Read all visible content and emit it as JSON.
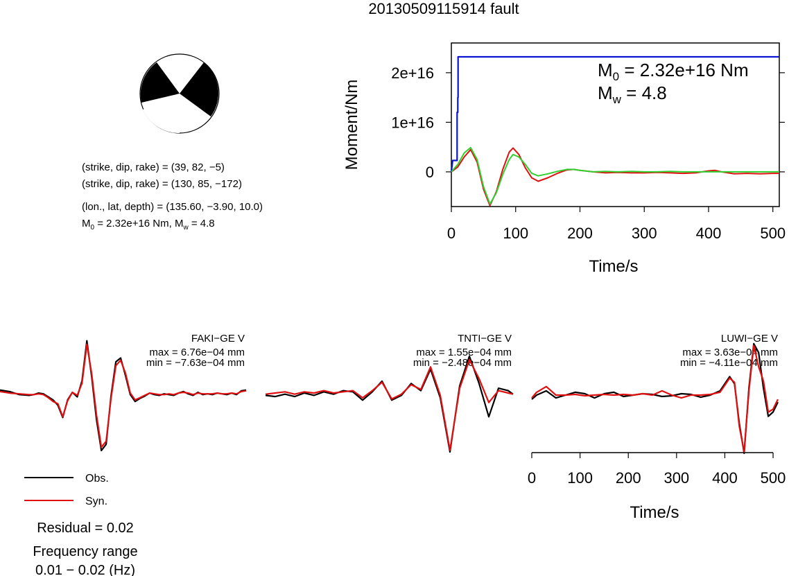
{
  "title": "20130509115914 fault",
  "solution": {
    "plane1": "(strike, dip, rake) = (39, 82, −5)",
    "plane2": "(strike, dip, rake) = (130, 85, −172)",
    "location": "(lon., lat, depth) = (135.60, −3.90, 10.0)",
    "moment_prefix": "M",
    "moment_sub": "0",
    "moment_value": " = 2.32e+16 Nm, M",
    "mw_sub": "w",
    "mw_value": " = 4.8"
  },
  "legend": {
    "obs_label": "Obs.",
    "syn_label": "Syn.",
    "obs_color": "#000000",
    "syn_color": "#e01010",
    "residual": "Residual = 0.02",
    "freq_label": "Frequency range",
    "freq_range": "0.01 − 0.02 (Hz)"
  },
  "colors": {
    "moment": "#0a14d0",
    "stf_red": "#e01010",
    "stf_green": "#30d030",
    "beachball": "#000000"
  },
  "chart_data": [
    {
      "type": "line",
      "xlabel": "Time/s",
      "ylabel": "Moment/Nm",
      "xlim": [
        0,
        510
      ],
      "ylim": [
        -7000000000000000.0,
        2.6e+16
      ],
      "xticks": [
        0,
        100,
        200,
        300,
        400,
        500
      ],
      "xtick_labels": [
        "0",
        "100",
        "200",
        "300",
        "400",
        "500"
      ],
      "yticks": [
        0,
        1e+16,
        2e+16
      ],
      "ytick_labels": [
        "0",
        "1e+16",
        "2e+16"
      ],
      "annotation_m0_prefix": "M",
      "annotation_m0_sub": "0",
      "annotation_m0_value": " = 2.32e+16 Nm",
      "annotation_mw_prefix": "M",
      "annotation_mw_sub": "w",
      "annotation_mw_value": " = 4.8",
      "series": [
        {
          "color": "#0a14d0",
          "x": [
            0,
            2,
            4,
            6,
            6,
            9,
            9,
            10,
            10,
            10.5,
            10.5,
            12,
            500,
            510
          ],
          "y": [
            0,
            2300000000000000.0,
            2300000000000000.0,
            2300000000000000.0,
            2300000000000000.0,
            2300000000000000.0,
            1.2e+16,
            1.2e+16,
            1.5e+16,
            1.5e+16,
            2.32e+16,
            2.32e+16,
            2.32e+16,
            2.32e+16
          ]
        },
        {
          "color": "#e01010",
          "x": [
            0,
            10,
            20,
            30,
            40,
            50,
            60,
            70,
            80,
            90,
            96,
            105,
            115,
            125,
            135,
            150,
            165,
            180,
            190,
            200,
            220,
            240,
            260,
            280,
            300,
            320,
            340,
            360,
            380,
            400,
            410,
            420,
            440,
            460,
            480,
            500,
            510
          ],
          "y": [
            0,
            1000000000000000.0,
            3000000000000000.0,
            4500000000000000.0,
            2000000000000000.0,
            -3500000000000000.0,
            -6800000000000000.0,
            -4000000000000000.0,
            500000000000000.0,
            4000000000000000.0,
            4800000000000000.0,
            3500000000000000.0,
            800000000000000.0,
            -1200000000000000.0,
            -1900000000000000.0,
            -1200000000000000.0,
            -300000000000000.0,
            400000000000000.0,
            500000000000000.0,
            300000000000000.0,
            0.0,
            -200000000000000.0,
            -100000000000000.0,
            -200000000000000.0,
            -200000000000000.0,
            -100000000000000.0,
            -200000000000000.0,
            -300000000000000.0,
            -200000000000000.0,
            200000000000000.0,
            300000000000000.0,
            0.0,
            -400000000000000.0,
            -300000000000000.0,
            -400000000000000.0,
            -300000000000000.0,
            -300000000000000.0
          ]
        },
        {
          "color": "#30d030",
          "x": [
            0,
            10,
            20,
            30,
            40,
            50,
            60,
            70,
            80,
            90,
            96,
            105,
            115,
            125,
            135,
            150,
            165,
            180,
            190,
            200,
            220,
            240,
            260,
            280,
            300,
            320,
            340,
            360,
            380,
            400,
            420,
            440,
            460,
            480,
            500,
            510
          ],
          "y": [
            0,
            1500000000000000.0,
            3800000000000000.0,
            4900000000000000.0,
            2500000000000000.0,
            -3000000000000000.0,
            -6500000000000000.0,
            -4200000000000000.0,
            -500000000000000.0,
            2500000000000000.0,
            3500000000000000.0,
            3000000000000000.0,
            1500000000000000.0,
            -300000000000000.0,
            -800000000000000.0,
            -400000000000000.0,
            100000000000000.0,
            500000000000000.0,
            500000000000000.0,
            300000000000000.0,
            0.0,
            100000000000000.0,
            0.0,
            100000000000000.0,
            0.0,
            0.0,
            100000000000000.0,
            0.0,
            0.0,
            0.0,
            0.0,
            0.0,
            0.0,
            0.0,
            0.0,
            0.0
          ]
        }
      ]
    },
    {
      "type": "line",
      "station": "FAKI−GE V",
      "max_label": "max = 6.76e−04 mm",
      "min_label": "min = −7.63e−04 mm",
      "xlim": [
        0,
        510
      ],
      "ylim": [
        -0.000763,
        0.000676
      ],
      "series": [
        {
          "name": "Obs.",
          "color": "#000000",
          "x": [
            0,
            20,
            40,
            60,
            70,
            80,
            90,
            100,
            110,
            120,
            130,
            140,
            150,
            160,
            170,
            180,
            190,
            200,
            210,
            220,
            230,
            240,
            250,
            260,
            270,
            280,
            290,
            300,
            310,
            320,
            330,
            340,
            350,
            360,
            370,
            380,
            390,
            400,
            410,
            420,
            430,
            440,
            450,
            460,
            470,
            480,
            490,
            500,
            510
          ],
          "y": [
            3e-05,
            1e-05,
            -3e-05,
            -4e-05,
            -3e-05,
            -1e-05,
            -2e-05,
            -6e-05,
            -0.0001,
            -0.00017,
            -0.00033,
            -0.0001,
            0.0,
            -6e-05,
            0.00015,
            0.000676,
            0.0002,
            -0.00036,
            -0.000763,
            -0.00068,
            -5e-05,
            0.0004,
            0.00045,
            0.00022,
            -3e-05,
            -0.00012,
            -8e-05,
            -5e-05,
            -1e-05,
            -3e-05,
            -4e-05,
            -2e-05,
            -3e-05,
            -4e-05,
            -1e-05,
            1e-05,
            -2e-05,
            -4e-05,
            0.0,
            -3e-05,
            -2e-05,
            -3e-05,
            -1e-05,
            -2e-05,
            -3e-05,
            -1e-05,
            -3e-05,
            2e-05,
            3e-05
          ]
        },
        {
          "name": "Syn.",
          "color": "#e01010",
          "x": [
            0,
            20,
            40,
            60,
            70,
            80,
            90,
            100,
            110,
            120,
            130,
            140,
            150,
            160,
            170,
            180,
            190,
            200,
            210,
            220,
            230,
            240,
            250,
            260,
            270,
            280,
            290,
            300,
            310,
            320,
            330,
            340,
            350,
            360,
            370,
            380,
            390,
            400,
            410,
            420,
            430,
            440,
            450,
            460,
            470,
            480,
            490,
            500,
            510
          ],
          "y": [
            1e-05,
            -1e-05,
            -2e-05,
            -3e-05,
            -3e-05,
            -2e-05,
            -3e-05,
            -7e-05,
            -0.00012,
            -0.00015,
            -0.00032,
            -0.00011,
            0.0,
            -4e-05,
            0.00012,
            0.00063,
            0.00024,
            -0.0003,
            -0.00072,
            -0.00064,
            -8e-05,
            0.00035,
            0.00042,
            0.00025,
            -1e-05,
            -0.0001,
            -7e-05,
            -4e-05,
            -1e-05,
            -2e-05,
            -3e-05,
            -3e-05,
            -2e-05,
            -3e-05,
            -1e-05,
            0.0,
            -1e-05,
            -3e-05,
            -1e-05,
            -2e-05,
            -2e-05,
            -2e-05,
            -1e-05,
            -2e-05,
            -2e-05,
            -1e-05,
            -2e-05,
            1e-05,
            2e-05
          ]
        }
      ]
    },
    {
      "type": "line",
      "station": "TNTI−GE V",
      "max_label": "max = 1.55e−04 mm",
      "min_label": "min = −2.48e−04 mm",
      "xlim": [
        0,
        510
      ],
      "ylim": [
        -0.000248,
        0.000155
      ],
      "series": [
        {
          "name": "Obs.",
          "color": "#000000",
          "x": [
            0,
            20,
            40,
            60,
            80,
            100,
            120,
            140,
            160,
            180,
            200,
            220,
            240,
            260,
            280,
            300,
            320,
            340,
            360,
            380,
            400,
            420,
            440,
            460,
            480,
            500,
            510
          ],
          "y": [
            -1e-05,
            -1.5e-05,
            -5e-06,
            -1.5e-05,
            0.0,
            -1e-05,
            5e-06,
            -5e-06,
            1e-05,
            5e-06,
            -3e-05,
            5e-06,
            5e-05,
            -3e-05,
            -1e-05,
            4e-05,
            1e-05,
            0.0001,
            -2e-05,
            -0.000248,
            3e-05,
            0.000155,
            4e-05,
            -0.0001,
            2e-05,
            1e-05,
            -5e-06
          ]
        },
        {
          "name": "Syn.",
          "color": "#e01010",
          "x": [
            0,
            20,
            40,
            60,
            80,
            100,
            120,
            140,
            160,
            180,
            200,
            220,
            240,
            260,
            280,
            300,
            320,
            340,
            360,
            380,
            400,
            420,
            440,
            460,
            480,
            500,
            510
          ],
          "y": [
            -5e-06,
            0.0,
            5e-06,
            -5e-06,
            5e-06,
            0.0,
            1e-05,
            0.0,
            5e-06,
            1e-05,
            -2e-05,
            1e-05,
            4.5e-05,
            -2.5e-05,
            -5e-06,
            3.5e-05,
            1.5e-05,
            0.00011,
            -1e-05,
            -0.00024,
            2e-05,
            0.00014,
            6e-05,
            -4e-05,
            1e-05,
            0.0,
            -5e-06
          ]
        }
      ]
    },
    {
      "type": "line",
      "station": "LUWI−GE V",
      "max_label": "max = 3.63e−04 mm",
      "min_label": "min = −4.11e−04 mm",
      "xlabel": "Time/s",
      "xlim": [
        0,
        510
      ],
      "ylim": [
        -0.000411,
        0.000363
      ],
      "xticks": [
        0,
        100,
        200,
        300,
        400,
        500
      ],
      "xtick_labels": [
        "0",
        "100",
        "200",
        "300",
        "400",
        "500"
      ],
      "series": [
        {
          "name": "Obs.",
          "color": "#000000",
          "x": [
            0,
            10,
            30,
            50,
            70,
            90,
            110,
            130,
            150,
            170,
            190,
            210,
            230,
            250,
            270,
            290,
            310,
            330,
            350,
            370,
            390,
            410,
            420,
            430,
            440,
            450,
            460,
            470,
            480,
            490,
            500,
            510
          ],
          "y": [
            -3e-05,
            0.0,
            3e-05,
            -2e-05,
            0.0,
            2e-05,
            1e-05,
            -2e-05,
            1e-05,
            2e-05,
            -1e-05,
            0.0,
            1e-05,
            5e-06,
            -1e-05,
            -5e-06,
            1e-05,
            5e-06,
            -1.5e-05,
            0.0,
            3e-05,
            0.00013,
            8e-05,
            -0.0002,
            -0.000411,
            5e-05,
            0.000363,
            0.0003,
            5e-05,
            -0.00015,
            -0.00012,
            -5e-05
          ]
        },
        {
          "name": "Syn.",
          "color": "#e01010",
          "x": [
            0,
            10,
            30,
            50,
            70,
            90,
            110,
            130,
            150,
            170,
            190,
            210,
            230,
            250,
            270,
            290,
            310,
            330,
            350,
            370,
            390,
            410,
            420,
            430,
            440,
            450,
            460,
            470,
            480,
            490,
            500,
            510
          ],
          "y": [
            -2e-05,
            2e-05,
            6e-05,
            0.0,
            0.0,
            5e-06,
            -5e-06,
            0.0,
            5e-06,
            0.0,
            5e-06,
            0.0,
            1e-05,
            0.0,
            3e-05,
            0.0,
            -2e-05,
            0.0,
            0.0,
            5e-06,
            2e-05,
            0.00012,
            9e-05,
            -0.00022,
            -0.0004,
            3e-05,
            0.00035,
            0.0002,
            0.0001,
            -0.00012,
            -0.0001,
            -3e-05
          ]
        }
      ]
    }
  ]
}
